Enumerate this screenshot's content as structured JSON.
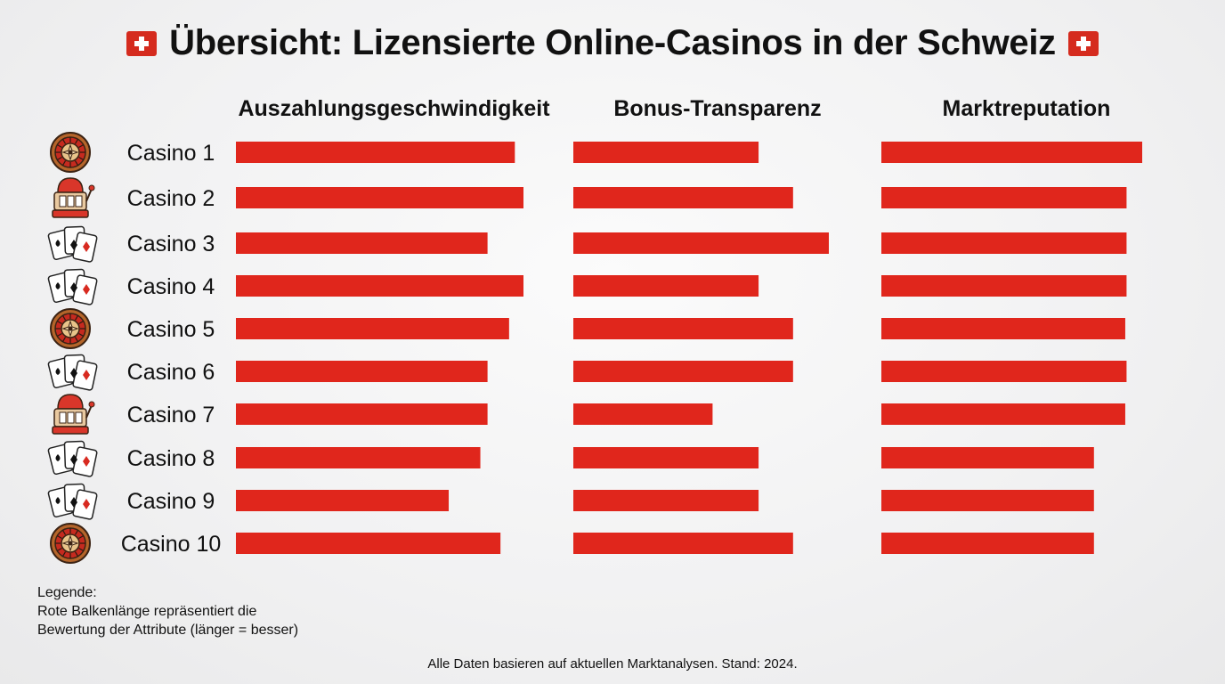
{
  "title": "Übersicht: Lizensierte Online-Casinos in der Schweiz",
  "title_icons": [
    "swiss-flag-icon",
    "swiss-flag-icon"
  ],
  "colors": {
    "bar": "#e0261c",
    "text": "#111111"
  },
  "chart_data": {
    "type": "bar",
    "orientation": "horizontal",
    "categories": [
      "Casino 1",
      "Casino 2",
      "Casino 3",
      "Casino 4",
      "Casino 5",
      "Casino 6",
      "Casino 7",
      "Casino 8",
      "Casino 9",
      "Casino 10"
    ],
    "category_icons": [
      "roulette-icon",
      "slot-machine-icon",
      "playing-cards-icon",
      "playing-cards-icon",
      "roulette-icon",
      "playing-cards-icon",
      "slot-machine-icon",
      "playing-cards-icon",
      "playing-cards-icon",
      "roulette-icon"
    ],
    "series": [
      {
        "name": "Auszahlungsgeschwindigkeit",
        "values": [
          9.7,
          10,
          8.75,
          10,
          9.5,
          8.75,
          8.75,
          8.5,
          7.4,
          9.2
        ]
      },
      {
        "name": "Bonus-Transparenz",
        "values": [
          7.25,
          8.6,
          10,
          7.25,
          8.6,
          8.6,
          5.45,
          7.25,
          7.25,
          8.6
        ]
      },
      {
        "name": "Marktreputation",
        "values": [
          10,
          9.4,
          9.4,
          9.4,
          9.35,
          9.4,
          9.35,
          8.15,
          8.15,
          8.15
        ]
      }
    ],
    "legend_lines": [
      "Legende:",
      "Rote Balkenlänge repräsentiert die",
      "Bewertung der Attribute (länger = besser)"
    ],
    "footnote": "Alle Daten basieren auf aktuellen Marktanalysen. Stand: 2024."
  }
}
